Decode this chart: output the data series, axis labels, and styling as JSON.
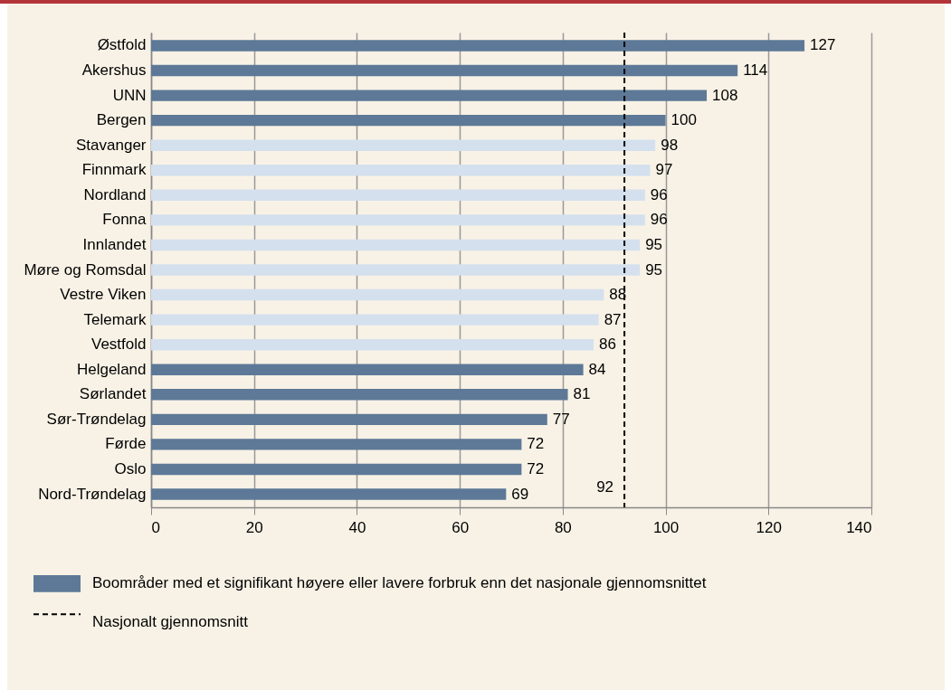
{
  "chart_data": {
    "type": "bar",
    "orientation": "horizontal",
    "categories": [
      "Østfold",
      "Akershus",
      "UNN",
      "Bergen",
      "Stavanger",
      "Finnmark",
      "Nordland",
      "Fonna",
      "Innlandet",
      "Møre og Romsdal",
      "Vestre Viken",
      "Telemark",
      "Vestfold",
      "Helgeland",
      "Sørlandet",
      "Sør-Trøndelag",
      "Førde",
      "Oslo",
      "Nord-Trøndelag"
    ],
    "series": [
      {
        "name": "Boområder med et signifikant høyere eller lavere forbruk enn det nasjonale gjennomsnittet",
        "color": "#5d7997",
        "values": [
          127,
          114,
          108,
          100,
          null,
          null,
          null,
          null,
          null,
          null,
          null,
          null,
          null,
          84,
          81,
          77,
          72,
          72,
          69
        ]
      },
      {
        "color": "#d4e0ee",
        "values": [
          null,
          null,
          null,
          null,
          98,
          97,
          96,
          96,
          95,
          95,
          88,
          87,
          86,
          null,
          null,
          null,
          null,
          null,
          null
        ]
      }
    ],
    "xlim": [
      0,
      140
    ],
    "xticks": [
      0,
      20,
      40,
      60,
      80,
      100,
      120,
      140
    ],
    "grid": "x",
    "data_labels": true,
    "legend": "bottom",
    "ref_lines": [
      {
        "axis": "x",
        "value": 92,
        "label": "Nasjonalt gjennomsnitt",
        "line_style": "dashed",
        "color": "#000000"
      }
    ],
    "annotations": [
      {
        "text": "92",
        "x": 92,
        "y": "Nord-Trøndelag"
      }
    ]
  }
}
